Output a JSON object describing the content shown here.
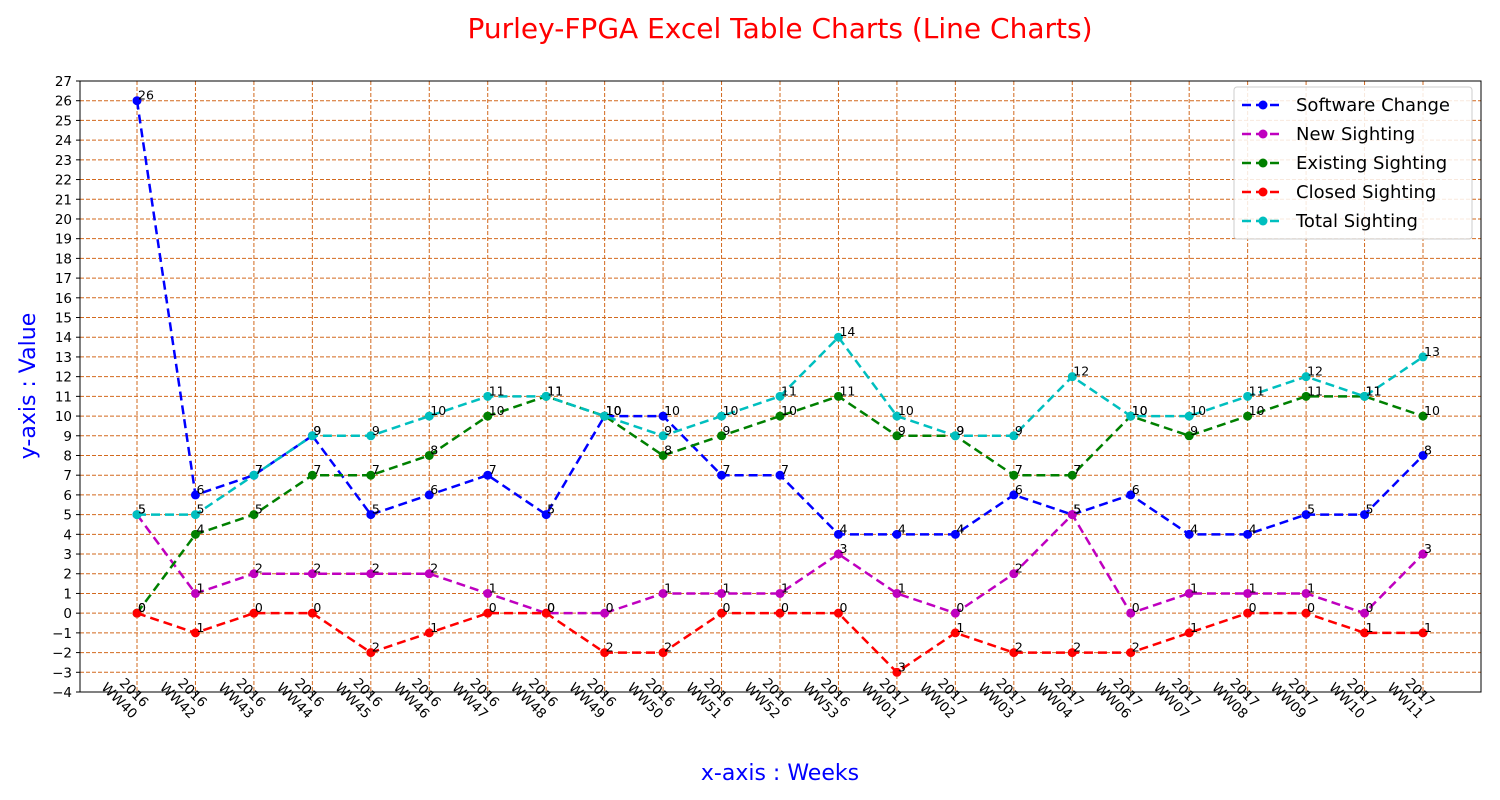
{
  "chart_data": {
    "type": "line",
    "title": "Purley-FPGA Excel Table Charts (Line Charts)",
    "title_color": "#ff0000",
    "xlabel": "x-axis : Weeks",
    "ylabel": "y-axis : Value",
    "axis_label_color": "#0000ff",
    "ylim": [
      -4,
      27
    ],
    "grid": true,
    "grid_color": "#d2691e",
    "legend_position": "top-right",
    "categories": [
      [
        "2016",
        "WW40"
      ],
      [
        "2016",
        "WW42"
      ],
      [
        "2016",
        "WW43"
      ],
      [
        "2016",
        "WW44"
      ],
      [
        "2016",
        "WW45"
      ],
      [
        "2016",
        "WW46"
      ],
      [
        "2016",
        "WW47"
      ],
      [
        "2016",
        "WW48"
      ],
      [
        "2016",
        "WW49"
      ],
      [
        "2016",
        "WW50"
      ],
      [
        "2016",
        "WW51"
      ],
      [
        "2016",
        "WW52"
      ],
      [
        "2016",
        "WW53"
      ],
      [
        "2017",
        "WW01"
      ],
      [
        "2017",
        "WW02"
      ],
      [
        "2017",
        "WW03"
      ],
      [
        "2017",
        "WW04"
      ],
      [
        "2017",
        "WW06"
      ],
      [
        "2017",
        "WW07"
      ],
      [
        "2017",
        "WW08"
      ],
      [
        "2017",
        "WW09"
      ],
      [
        "2017",
        "WW10"
      ],
      [
        "2017",
        "WW11"
      ]
    ],
    "series": [
      {
        "name": "Software Change",
        "color": "#0000ff",
        "values": [
          26,
          6,
          7,
          9,
          5,
          6,
          7,
          5,
          10,
          10,
          7,
          7,
          4,
          4,
          4,
          6,
          5,
          6,
          4,
          4,
          5,
          5,
          8
        ]
      },
      {
        "name": "New Sighting",
        "color": "#bf00bf",
        "values": [
          5,
          1,
          2,
          2,
          2,
          2,
          1,
          0,
          0,
          1,
          1,
          1,
          3,
          1,
          0,
          2,
          5,
          0,
          1,
          1,
          1,
          0,
          3
        ]
      },
      {
        "name": "Existing Sighting",
        "color": "#008000",
        "values": [
          0,
          4,
          5,
          7,
          7,
          8,
          10,
          11,
          10,
          8,
          9,
          10,
          11,
          9,
          9,
          7,
          7,
          10,
          9,
          10,
          11,
          11,
          10
        ]
      },
      {
        "name": "Closed Sighting",
        "color": "#ff0000",
        "values": [
          0,
          -1,
          0,
          0,
          -2,
          -1,
          0,
          0,
          -2,
          -2,
          0,
          0,
          0,
          -3,
          -1,
          -2,
          -2,
          -2,
          -1,
          0,
          0,
          -1,
          -1
        ]
      },
      {
        "name": "Total Sighting",
        "color": "#00bfbf",
        "values": [
          5,
          5,
          7,
          9,
          9,
          10,
          11,
          11,
          10,
          9,
          10,
          11,
          14,
          10,
          9,
          9,
          12,
          10,
          10,
          11,
          12,
          11,
          13
        ]
      }
    ]
  }
}
